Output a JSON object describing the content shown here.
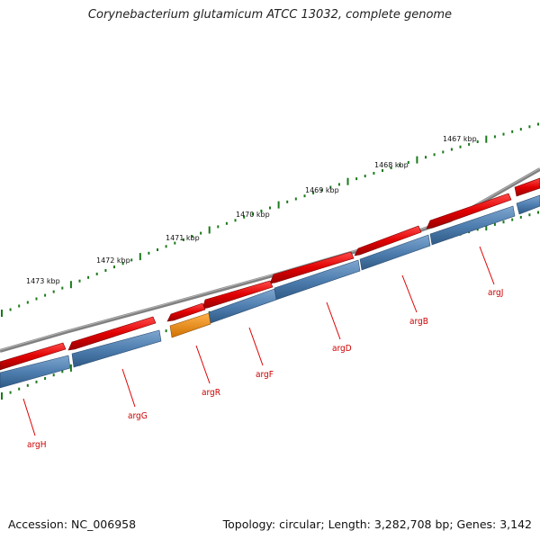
{
  "map": {
    "title": "Corynebacterium glutamicum ATCC 13032, complete genome",
    "accession": "Accession: NC_006958",
    "topology": "Topology: circular; Length: 3,282,708 bp; Genes: 3,142"
  },
  "ruler": {
    "labels": [
      "1467 kbp",
      "1468 kbp",
      "1469 kbp",
      "1470 kbp",
      "1471 kbp",
      "1472 kbp",
      "1473 kbp"
    ]
  },
  "genes": [
    {
      "name": "argJ",
      "color": "#e00000"
    },
    {
      "name": "argB",
      "color": "#e00000"
    },
    {
      "name": "argD",
      "color": "#e00000"
    },
    {
      "name": "argF",
      "color": "#e00000"
    },
    {
      "name": "argR",
      "color": "#f08c00"
    },
    {
      "name": "argG",
      "color": "#e00000"
    },
    {
      "name": "argH",
      "color": "#e00000"
    }
  ],
  "colors": {
    "backbone": "#7a7a7a",
    "forward_strand": "#e00000",
    "cds": "#4f7fb0",
    "regulator_cds": "#f08c00",
    "ticks": "#1a7a1a",
    "labels": "#cc0000"
  }
}
